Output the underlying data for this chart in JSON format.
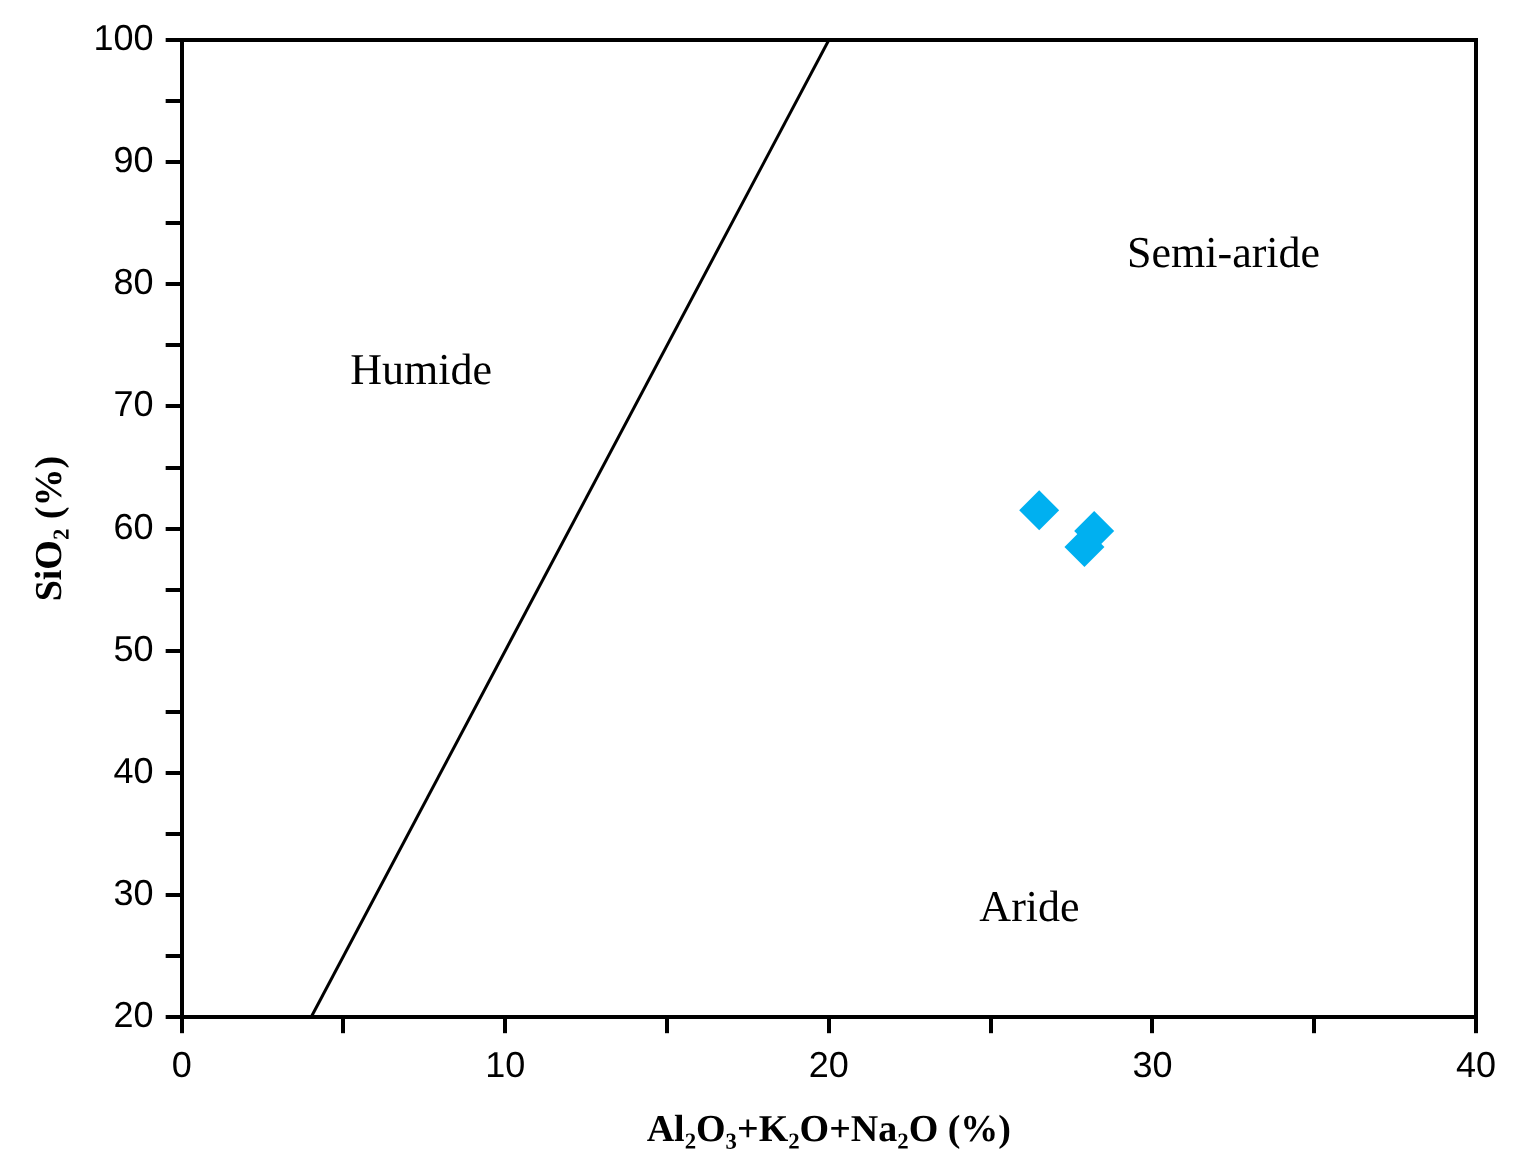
{
  "chart_data": {
    "type": "scatter",
    "xlabel": "Al₂O₃+K₂O+Na₂O (%)",
    "ylabel": "SiO₂ (%)",
    "xlim": [
      0,
      40
    ],
    "ylim": [
      20,
      100
    ],
    "xticks": [
      0,
      {
        "value": 5,
        "label": null
      },
      10,
      {
        "value": 15,
        "label": null
      },
      20,
      {
        "value": 25,
        "label": null
      },
      30,
      {
        "value": 35,
        "label": null
      },
      40
    ],
    "yticks": [
      20,
      {
        "value": 25,
        "label": null
      },
      30,
      {
        "value": 35,
        "label": null
      },
      40,
      {
        "value": 45,
        "label": null
      },
      50,
      {
        "value": 55,
        "label": null
      },
      60,
      {
        "value": 65,
        "label": null
      },
      70,
      {
        "value": 75,
        "label": null
      },
      80,
      {
        "value": 85,
        "label": null
      },
      90,
      {
        "value": 95,
        "label": null
      },
      100
    ],
    "grid": false,
    "legend": false,
    "series": [
      {
        "type": "line",
        "x": [
          4,
          20
        ],
        "values": [
          20,
          100
        ],
        "color": "#000000",
        "marker": "none",
        "line_style": "solid"
      },
      {
        "x": [
          26.5,
          27.9,
          28.2
        ],
        "values": [
          61.5,
          58.5,
          59.8
        ],
        "color": "#00b0f0",
        "marker": "diamond"
      }
    ],
    "annotations": [
      "Humide",
      "Semi-aride",
      "Aride"
    ]
  }
}
